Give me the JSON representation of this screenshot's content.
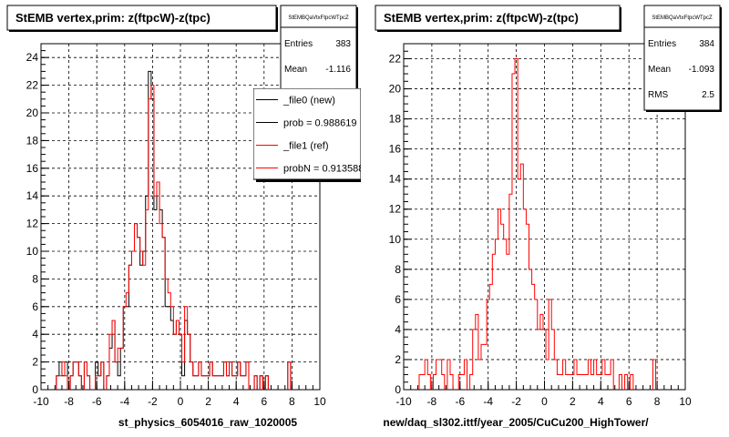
{
  "chart_data": [
    {
      "type": "histogram",
      "title": "StEMB  vertex,prim: z(ftpcW)-z(tpc)",
      "xlabel": "st_physics_6054016_raw_1020005",
      "xlim": [
        -10,
        10
      ],
      "ylim": [
        0,
        25
      ],
      "xticks": [
        -10,
        -8,
        -6,
        -4,
        -2,
        0,
        2,
        4,
        6,
        8,
        10
      ],
      "yticks": [
        0,
        2,
        4,
        6,
        8,
        10,
        12,
        14,
        16,
        18,
        20,
        22,
        24
      ],
      "grid": true,
      "stats": {
        "name": "StEMBQaVtxFtpcWTpcZ",
        "rows": [
          {
            "label": "Entries",
            "value": "383"
          },
          {
            "label": "Mean",
            "value": "-1.116"
          }
        ]
      },
      "legend": {
        "placement": "top-right",
        "entries": [
          {
            "label": "_file0 (new)",
            "color": "#000000"
          },
          {
            "label": "prob = 0.988619",
            "color": "#000000"
          },
          {
            "label": "_file1 (ref)",
            "color": "#ff0000"
          },
          {
            "label": "probN = 0.913588",
            "color": "#ff0000"
          }
        ]
      },
      "bin_width": 0.2,
      "series": [
        {
          "name": "_file0 (new)",
          "color": "#000000",
          "x": [
            -8.8,
            -8.6,
            -8.4,
            -8.2,
            -7.8,
            -7.6,
            -7.4,
            -7.2,
            -6.8,
            -6.6,
            -6.0,
            -5.8,
            -5.6,
            -5.2,
            -5.0,
            -4.8,
            -4.6,
            -4.4,
            -4.2,
            -4.0,
            -3.8,
            -3.6,
            -3.4,
            -3.2,
            -3.0,
            -2.8,
            -2.6,
            -2.4,
            -2.2,
            -2.0,
            -1.8,
            -1.6,
            -1.4,
            -1.2,
            -1.0,
            -0.8,
            -0.6,
            -0.4,
            -0.2,
            0.0,
            0.2,
            0.4,
            0.6,
            0.8,
            1.0,
            1.2,
            1.4,
            1.6,
            1.8,
            2.0,
            2.2,
            2.4,
            2.6,
            2.8,
            3.0,
            3.2,
            3.4,
            3.6,
            3.8,
            4.0,
            4.2,
            4.4,
            4.6,
            4.8,
            5.4,
            5.8,
            6.2,
            7.8
          ],
          "y": [
            1,
            2,
            1,
            2,
            1,
            2,
            2,
            1,
            2,
            1,
            2,
            1,
            2,
            1,
            3,
            5,
            2,
            1,
            3,
            6,
            6,
            9,
            10,
            12,
            11,
            9,
            10,
            14,
            23,
            21,
            13,
            15,
            13,
            11,
            6,
            6,
            5,
            4,
            5,
            4,
            1,
            5,
            4,
            2,
            1,
            1,
            2,
            1,
            1,
            1,
            2,
            1,
            1,
            1,
            1,
            2,
            1,
            2,
            1,
            1,
            2,
            1,
            1,
            2,
            1,
            1,
            1,
            2
          ]
        },
        {
          "name": "_file1 (ref)",
          "color": "#ff0000",
          "x": [
            -8.8,
            -8.6,
            -8.4,
            -8.2,
            -7.8,
            -7.6,
            -7.4,
            -7.2,
            -6.8,
            -6.6,
            -6.0,
            -5.8,
            -5.6,
            -5.2,
            -5.0,
            -4.8,
            -4.6,
            -4.4,
            -4.2,
            -4.0,
            -3.8,
            -3.6,
            -3.4,
            -3.2,
            -3.0,
            -2.8,
            -2.6,
            -2.4,
            -2.2,
            -2.0,
            -1.8,
            -1.6,
            -1.4,
            -1.2,
            -1.0,
            -0.8,
            -0.6,
            -0.4,
            -0.2,
            0.0,
            0.2,
            0.4,
            0.6,
            0.8,
            1.0,
            1.2,
            1.4,
            1.6,
            1.8,
            2.0,
            2.2,
            2.4,
            2.6,
            2.8,
            3.0,
            3.2,
            3.4,
            3.6,
            3.8,
            4.0,
            4.2,
            4.4,
            4.6,
            4.8,
            5.4,
            5.8,
            6.2,
            7.8
          ],
          "y": [
            1,
            1,
            2,
            1,
            1,
            2,
            2,
            1,
            2,
            1,
            1,
            1,
            2,
            1,
            4,
            5,
            2,
            3,
            3,
            6,
            7,
            9,
            10,
            12,
            11,
            10,
            9,
            13,
            21,
            22,
            14,
            15,
            12,
            11,
            8,
            7,
            6,
            4,
            5,
            4,
            2,
            6,
            4,
            2,
            1,
            1,
            2,
            1,
            1,
            1,
            2,
            1,
            1,
            1,
            1,
            2,
            1,
            2,
            1,
            1,
            2,
            1,
            1,
            2,
            1,
            1,
            1,
            2
          ]
        }
      ]
    },
    {
      "type": "histogram",
      "title": "StEMB  vertex,prim: z(ftpcW)-z(tpc)",
      "xlabel": "new/daq_sl302.ittf/year_2005/CuCu200_HighTower/",
      "xlim": [
        -10,
        10
      ],
      "ylim": [
        0,
        23
      ],
      "xticks": [
        -10,
        -8,
        -6,
        -4,
        -2,
        0,
        2,
        4,
        6,
        8,
        10
      ],
      "yticks": [
        0,
        2,
        4,
        6,
        8,
        10,
        12,
        14,
        16,
        18,
        20,
        22
      ],
      "grid": true,
      "stats": {
        "name": "StEMBQaVtxFtpcWTpcZ",
        "rows": [
          {
            "label": "Entries",
            "value": "384"
          },
          {
            "label": "Mean",
            "value": "-1.093"
          },
          {
            "label": "RMS",
            "value": "2.5"
          }
        ]
      },
      "bin_width": 0.2,
      "series": [
        {
          "name": "",
          "color": "#ff0000",
          "x": [
            -8.8,
            -8.6,
            -8.4,
            -8.2,
            -7.8,
            -7.6,
            -7.4,
            -7.2,
            -6.8,
            -6.6,
            -6.0,
            -5.8,
            -5.6,
            -5.2,
            -5.0,
            -4.8,
            -4.6,
            -4.4,
            -4.2,
            -4.0,
            -3.8,
            -3.6,
            -3.4,
            -3.2,
            -3.0,
            -2.8,
            -2.6,
            -2.4,
            -2.2,
            -2.0,
            -1.8,
            -1.6,
            -1.4,
            -1.2,
            -1.0,
            -0.8,
            -0.6,
            -0.4,
            -0.2,
            0.0,
            0.2,
            0.4,
            0.6,
            0.8,
            1.0,
            1.2,
            1.4,
            1.6,
            1.8,
            2.0,
            2.2,
            2.4,
            2.6,
            2.8,
            3.0,
            3.2,
            3.4,
            3.6,
            3.8,
            4.0,
            4.2,
            4.4,
            4.6,
            4.8,
            5.4,
            5.8,
            6.2,
            7.8
          ],
          "y": [
            1,
            1,
            2,
            1,
            1,
            2,
            2,
            1,
            2,
            1,
            1,
            1,
            2,
            1,
            4,
            5,
            2,
            3,
            3,
            6,
            7,
            9,
            10,
            12,
            11,
            10,
            9,
            13,
            21,
            22,
            14,
            15,
            12,
            11,
            8,
            7,
            6,
            4,
            5,
            4,
            2,
            6,
            4,
            2,
            1,
            1,
            2,
            1,
            1,
            1,
            2,
            1,
            1,
            1,
            1,
            2,
            1,
            2,
            1,
            1,
            2,
            1,
            1,
            2,
            1,
            1,
            1,
            2
          ]
        }
      ]
    }
  ]
}
